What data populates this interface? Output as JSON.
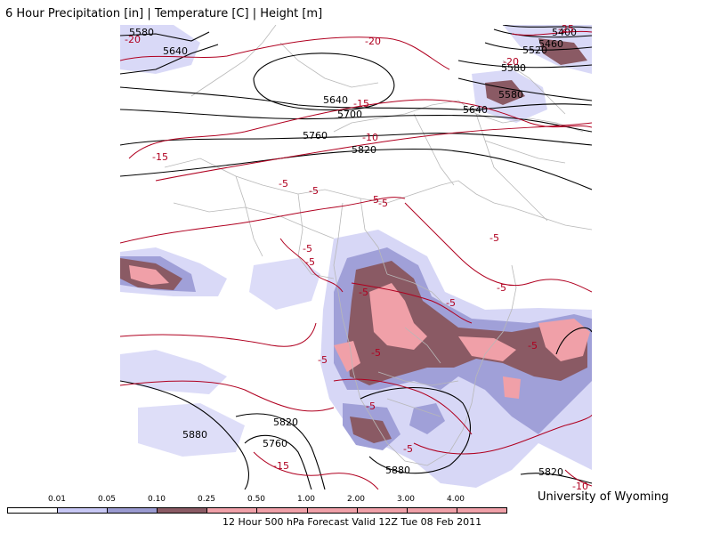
{
  "title": "6 Hour Precipitation [in] | Temperature [C] | Height [m]",
  "credit": "University of Wyoming",
  "footer": "12 Hour 500 hPa Forecast Valid 12Z Tue 08 Feb 2011",
  "legend": {
    "labels": [
      "0.01",
      "0.05",
      "0.10",
      "0.25",
      "0.50",
      "1.00",
      "2.00",
      "3.00",
      "4.00"
    ],
    "colors": [
      "#ffffff",
      "#c8c8f5",
      "#9a9ad0",
      "#8a5a64",
      "#f0a0a8",
      "#f0a0a8",
      "#f0a0a8",
      "#f0a0a8",
      "#f0a0a8",
      "#f0a0a8"
    ]
  },
  "colors": {
    "height_contour": "#000000",
    "temperature_contour": "#b00020",
    "boundaries": "#b8b8b8",
    "precip_light": "#d0d0f5",
    "precip_medium": "#a0a0d8",
    "precip_heavy": "#8a5a64",
    "precip_extreme": "#f0a0a8"
  },
  "height_labels": [
    {
      "text": "5580"
    },
    {
      "text": "5640"
    },
    {
      "text": "5640"
    },
    {
      "text": "5700"
    },
    {
      "text": "5760"
    },
    {
      "text": "5820"
    },
    {
      "text": "5400"
    },
    {
      "text": "5460"
    },
    {
      "text": "5520"
    },
    {
      "text": "5580"
    },
    {
      "text": "5580"
    },
    {
      "text": "5640"
    },
    {
      "text": "5880"
    },
    {
      "text": "5820"
    },
    {
      "text": "5760"
    },
    {
      "text": "5880"
    },
    {
      "text": "5820"
    }
  ],
  "temp_labels": [
    {
      "text": "-20"
    },
    {
      "text": "-20"
    },
    {
      "text": "-15"
    },
    {
      "text": "-15"
    },
    {
      "text": "-10"
    },
    {
      "text": "-25"
    },
    {
      "text": "-20"
    },
    {
      "text": "-5"
    },
    {
      "text": "-5"
    },
    {
      "text": "-5"
    },
    {
      "text": "-5"
    },
    {
      "text": "-5"
    },
    {
      "text": "-5"
    },
    {
      "text": "-5"
    },
    {
      "text": "-5"
    },
    {
      "text": "-5"
    },
    {
      "text": "-5"
    },
    {
      "text": "-5"
    },
    {
      "text": "-5"
    },
    {
      "text": "-5"
    },
    {
      "text": "-5"
    },
    {
      "text": "-5"
    },
    {
      "text": "-15"
    },
    {
      "text": "-10"
    }
  ]
}
